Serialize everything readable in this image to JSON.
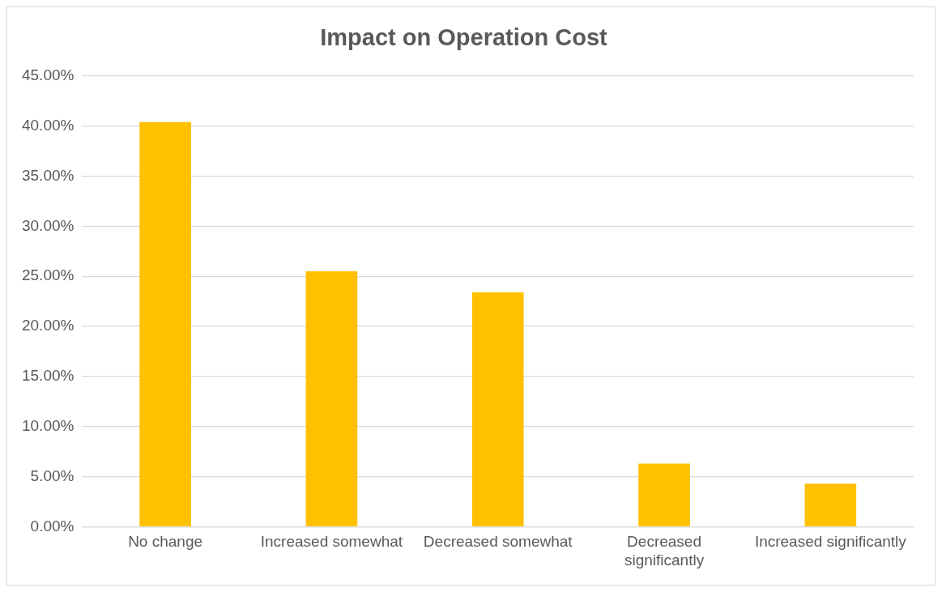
{
  "chart_data": {
    "type": "bar",
    "title": "Impact on Operation Cost",
    "categories": [
      "No change",
      "Increased somewhat",
      "Decreased somewhat",
      "Decreased significantly",
      "Increased significantly"
    ],
    "values": [
      40.4,
      25.5,
      23.4,
      6.3,
      4.3
    ],
    "color": "#ffc000",
    "ylim": [
      0,
      45
    ],
    "yticks": [
      {
        "value": 0,
        "label": "0.00%"
      },
      {
        "value": 5,
        "label": "5.00%"
      },
      {
        "value": 10,
        "label": "10.00%"
      },
      {
        "value": 15,
        "label": "15.00%"
      },
      {
        "value": 20,
        "label": "20.00%"
      },
      {
        "value": 25,
        "label": "25.00%"
      },
      {
        "value": 30,
        "label": "30.00%"
      },
      {
        "value": 35,
        "label": "35.00%"
      },
      {
        "value": 40,
        "label": "40.00%"
      },
      {
        "value": 45,
        "label": "45.00%"
      }
    ],
    "grid": "y"
  }
}
